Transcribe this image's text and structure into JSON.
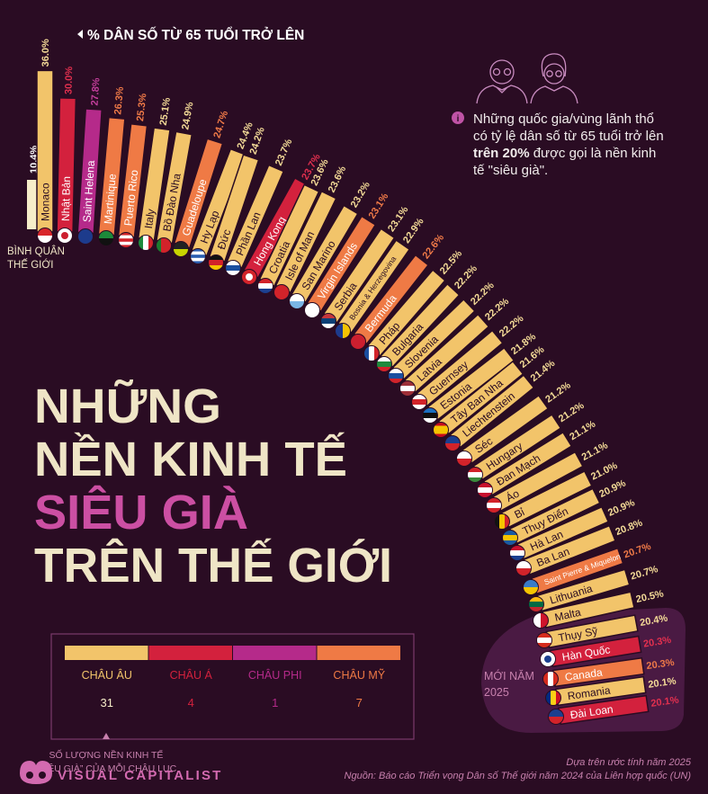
{
  "header": {
    "axis_label": "% DÂN SỐ TỪ 65 TUỔI TRỞ LÊN",
    "arrow_icon": "triangle-left"
  },
  "world_average": {
    "value": 10.4,
    "value_label": "10.4%",
    "label_line1": "BÌNH QUÂN",
    "label_line2": "THẾ GIỚI",
    "color": "#f6edc9"
  },
  "title": {
    "line1": "NHỮNG",
    "line2": "NỀN KINH TẾ",
    "line3": "SIÊU GIÀ",
    "line4": "TRÊN THẾ GIỚI",
    "color": "#efe5c6",
    "accent": "#cc4fa3"
  },
  "info": {
    "icon": "info-icon",
    "text_line1": "Những quốc gia/vùng lãnh thổ",
    "text_line2": "có tỷ lệ dân số từ 65 tuổi trở lên",
    "text_bold": "trên 20%",
    "text_line3_rest": " được gọi là nền kinh",
    "text_line4": "tế \"siêu già\"."
  },
  "new_2025": {
    "line1": "MỚI NĂM",
    "line2": "2025"
  },
  "legend": {
    "items": [
      {
        "label": "CHÂU ÂU",
        "count": "31",
        "color": "#f2c46a"
      },
      {
        "label": "CHÂU Á",
        "count": "4",
        "color": "#d3213d"
      },
      {
        "label": "CHÂU PHI",
        "count": "1",
        "color": "#b52a8a"
      },
      {
        "label": "CHÂU MỸ",
        "count": "7",
        "color": "#ef7a45"
      }
    ],
    "caption_line1": "SỐ LƯỢNG NỀN KINH TẾ",
    "caption_line2": "“SIÊU GIÀ” CỦA MỖI CHÂU LỤC"
  },
  "footer": {
    "logo": "VISUAL CAPITALIST",
    "note": "Dựa trên ước tính năm 2025",
    "source": "Nguồn: Báo cáo Triển vọng Dân số Thế giới năm 2024 của Liên hợp quốc (UN)"
  },
  "colors": {
    "background": "#2a0c23",
    "europe": "#f2c46a",
    "asia": "#d3213d",
    "africa": "#b52a8a",
    "americas": "#ef7a45"
  },
  "chart_data": {
    "type": "bar",
    "title": "% DÂN SỐ TỪ 65 TUỔI TRỞ LÊN",
    "reference": {
      "name": "BÌNH QUÂN THẾ GIỚI",
      "value": 10.4
    },
    "highlight_group": {
      "label": "MỚI NĂM 2025",
      "countries": [
        "Thụy Sỹ",
        "Hàn Quốc",
        "Canada",
        "Romania",
        "Đài Loan"
      ]
    },
    "bars": [
      {
        "name": "Monaco",
        "value": 36.0,
        "label": "36.0%",
        "region": "europe",
        "flag": [
          "h",
          "#d8262b",
          "#ffffff"
        ]
      },
      {
        "name": "Nhật Bản",
        "value": 30.0,
        "label": "30.0%",
        "region": "asia",
        "flag": [
          "dot",
          "#ffffff",
          "#cc1f2f"
        ]
      },
      {
        "name": "Saint Helena",
        "value": 27.8,
        "label": "27.8%",
        "region": "africa",
        "flag": [
          "h",
          "#1d3b8c",
          "#1d3b8c"
        ]
      },
      {
        "name": "Martinique",
        "value": 26.3,
        "label": "26.3%",
        "region": "americas",
        "flag": [
          "h",
          "#1c8a3a",
          "#111111"
        ]
      },
      {
        "name": "Puerto Rico",
        "value": 25.3,
        "label": "25.3%",
        "region": "americas",
        "flag": [
          "h",
          "#d2232a",
          "#ffffff",
          "#d2232a",
          "#ffffff",
          "#d2232a"
        ]
      },
      {
        "name": "Italy",
        "value": 25.1,
        "label": "25.1%",
        "region": "europe",
        "flag": [
          "v",
          "#1f8a3c",
          "#ffffff",
          "#d2232a"
        ]
      },
      {
        "name": "Bồ Đào Nha",
        "value": 24.9,
        "label": "24.9%",
        "region": "europe",
        "flag": [
          "v",
          "#1b7a2e",
          "#d2232a",
          "#d2232a"
        ]
      },
      {
        "name": "Guadeloupe",
        "value": 24.7,
        "label": "24.7%",
        "region": "americas",
        "flag": [
          "h",
          "#222222",
          "#c8d400"
        ]
      },
      {
        "name": "Hy Lạp",
        "value": 24.4,
        "label": "24.4%",
        "region": "europe",
        "flag": [
          "h",
          "#2a5db0",
          "#ffffff",
          "#2a5db0",
          "#ffffff",
          "#2a5db0"
        ]
      },
      {
        "name": "Đức",
        "value": 24.2,
        "label": "24.2%",
        "region": "europe",
        "flag": [
          "h",
          "#111111",
          "#d2232a",
          "#f5c400"
        ]
      },
      {
        "name": "Phần Lan",
        "value": 23.7,
        "label": "23.7%",
        "region": "europe",
        "flag": [
          "h",
          "#ffffff",
          "#1b4fa0",
          "#ffffff"
        ]
      },
      {
        "name": "Hong Kong",
        "value": 23.7,
        "label": "23.7%",
        "region": "asia",
        "flag": [
          "dot",
          "#d2232a",
          "#ffffff"
        ]
      },
      {
        "name": "Croatia",
        "value": 23.6,
        "label": "23.6%",
        "region": "europe",
        "flag": [
          "h",
          "#d2232a",
          "#ffffff",
          "#1b3f8f"
        ]
      },
      {
        "name": "Isle of Man",
        "value": 23.6,
        "label": "23.6%",
        "region": "europe",
        "flag": [
          "h",
          "#d2232a",
          "#d2232a"
        ]
      },
      {
        "name": "San Marino",
        "value": 23.2,
        "label": "23.2%",
        "region": "europe",
        "flag": [
          "h",
          "#ffffff",
          "#7ab6e6"
        ]
      },
      {
        "name": "Virgin Islands",
        "value": 23.1,
        "label": "23.1%",
        "region": "americas",
        "flag": [
          "h",
          "#ffffff",
          "#ffffff"
        ]
      },
      {
        "name": "Serbia",
        "value": 23.1,
        "label": "23.1%",
        "region": "europe",
        "flag": [
          "h",
          "#c6363c",
          "#0c4076",
          "#ffffff"
        ]
      },
      {
        "name": "Bosnia & Herzegovina",
        "value": 22.9,
        "label": "22.9%",
        "region": "europe",
        "flag": [
          "v",
          "#1d3b8c",
          "#f5c400"
        ]
      },
      {
        "name": "Bermuda",
        "value": 22.6,
        "label": "22.6%",
        "region": "americas",
        "flag": [
          "h",
          "#cc1f2f",
          "#cc1f2f"
        ]
      },
      {
        "name": "Pháp",
        "value": 22.5,
        "label": "22.5%",
        "region": "europe",
        "flag": [
          "v",
          "#1b4fa0",
          "#ffffff",
          "#d2232a"
        ]
      },
      {
        "name": "Bulgaria",
        "value": 22.2,
        "label": "22.2%",
        "region": "europe",
        "flag": [
          "h",
          "#ffffff",
          "#1f8a3c",
          "#d2232a"
        ]
      },
      {
        "name": "Slovenia",
        "value": 22.2,
        "label": "22.2%",
        "region": "europe",
        "flag": [
          "h",
          "#ffffff",
          "#1b4fa0",
          "#d2232a"
        ]
      },
      {
        "name": "Latvia",
        "value": 22.2,
        "label": "22.2%",
        "region": "europe",
        "flag": [
          "h",
          "#9e3039",
          "#ffffff",
          "#9e3039"
        ]
      },
      {
        "name": "Guernsey",
        "value": 22.2,
        "label": "22.2%",
        "region": "europe",
        "flag": [
          "h",
          "#ffffff",
          "#d2232a",
          "#ffffff"
        ]
      },
      {
        "name": "Estonia",
        "value": 21.8,
        "label": "21.8%",
        "region": "europe",
        "flag": [
          "h",
          "#1b6fc0",
          "#111111",
          "#ffffff"
        ]
      },
      {
        "name": "Tây Ban Nha",
        "value": 21.6,
        "label": "21.6%",
        "region": "europe",
        "flag": [
          "h",
          "#c60b1e",
          "#f5c400",
          "#f5c400",
          "#c60b1e"
        ]
      },
      {
        "name": "Liechtenstein",
        "value": 21.4,
        "label": "21.4%",
        "region": "europe",
        "flag": [
          "h",
          "#1b3f8f",
          "#d2232a"
        ]
      },
      {
        "name": "Séc",
        "value": 21.2,
        "label": "21.2%",
        "region": "europe",
        "flag": [
          "h",
          "#ffffff",
          "#d2232a"
        ]
      },
      {
        "name": "Hungary",
        "value": 21.2,
        "label": "21.2%",
        "region": "europe",
        "flag": [
          "h",
          "#d2232a",
          "#ffffff",
          "#3a8a3c"
        ]
      },
      {
        "name": "Đan Mạch",
        "value": 21.1,
        "label": "21.1%",
        "region": "europe",
        "flag": [
          "h",
          "#c8102e",
          "#ffffff",
          "#c8102e"
        ]
      },
      {
        "name": "Áo",
        "value": 21.1,
        "label": "21.1%",
        "region": "europe",
        "flag": [
          "h",
          "#d2232a",
          "#ffffff",
          "#d2232a"
        ]
      },
      {
        "name": "Bỉ",
        "value": 21.0,
        "label": "21.0%",
        "region": "europe",
        "flag": [
          "v",
          "#111111",
          "#f5c400",
          "#d2232a"
        ]
      },
      {
        "name": "Thụy Điển",
        "value": 20.9,
        "label": "20.9%",
        "region": "europe",
        "flag": [
          "h",
          "#1b5aa0",
          "#f5c400",
          "#1b5aa0"
        ]
      },
      {
        "name": "Hà Lan",
        "value": 20.9,
        "label": "20.9%",
        "region": "europe",
        "flag": [
          "h",
          "#c8102e",
          "#ffffff",
          "#1b3f8f"
        ]
      },
      {
        "name": "Ba Lan",
        "value": 20.8,
        "label": "20.8%",
        "region": "europe",
        "flag": [
          "h",
          "#ffffff",
          "#d2232a"
        ]
      },
      {
        "name": "Saint Pierre & Miquelon",
        "value": 20.7,
        "label": "20.7%",
        "region": "americas",
        "flag": [
          "h",
          "#3a7cc8",
          "#f5c400"
        ]
      },
      {
        "name": "Lithuania",
        "value": 20.7,
        "label": "20.7%",
        "region": "europe",
        "flag": [
          "h",
          "#fdb913",
          "#006a44",
          "#c1272d"
        ]
      },
      {
        "name": "Malta",
        "value": 20.5,
        "label": "20.5%",
        "region": "europe",
        "flag": [
          "v",
          "#ffffff",
          "#cf142b"
        ]
      },
      {
        "name": "Thụy Sỹ",
        "value": 20.4,
        "label": "20.4%",
        "region": "europe",
        "flag": [
          "h",
          "#d52b1e",
          "#ffffff",
          "#d52b1e"
        ]
      },
      {
        "name": "Hàn Quốc",
        "value": 20.3,
        "label": "20.3%",
        "region": "asia",
        "flag": [
          "dot",
          "#ffffff",
          "#1b3f8f"
        ]
      },
      {
        "name": "Canada",
        "value": 20.3,
        "label": "20.3%",
        "region": "americas",
        "flag": [
          "v",
          "#d52b1e",
          "#ffffff",
          "#d52b1e"
        ]
      },
      {
        "name": "Romania",
        "value": 20.1,
        "label": "20.1%",
        "region": "europe",
        "flag": [
          "v",
          "#002b7f",
          "#fcd116",
          "#ce1126"
        ]
      },
      {
        "name": "Đài Loan",
        "value": 20.1,
        "label": "20.1%",
        "region": "asia",
        "flag": [
          "h",
          "#1b3f8f",
          "#d2232a"
        ]
      }
    ]
  }
}
